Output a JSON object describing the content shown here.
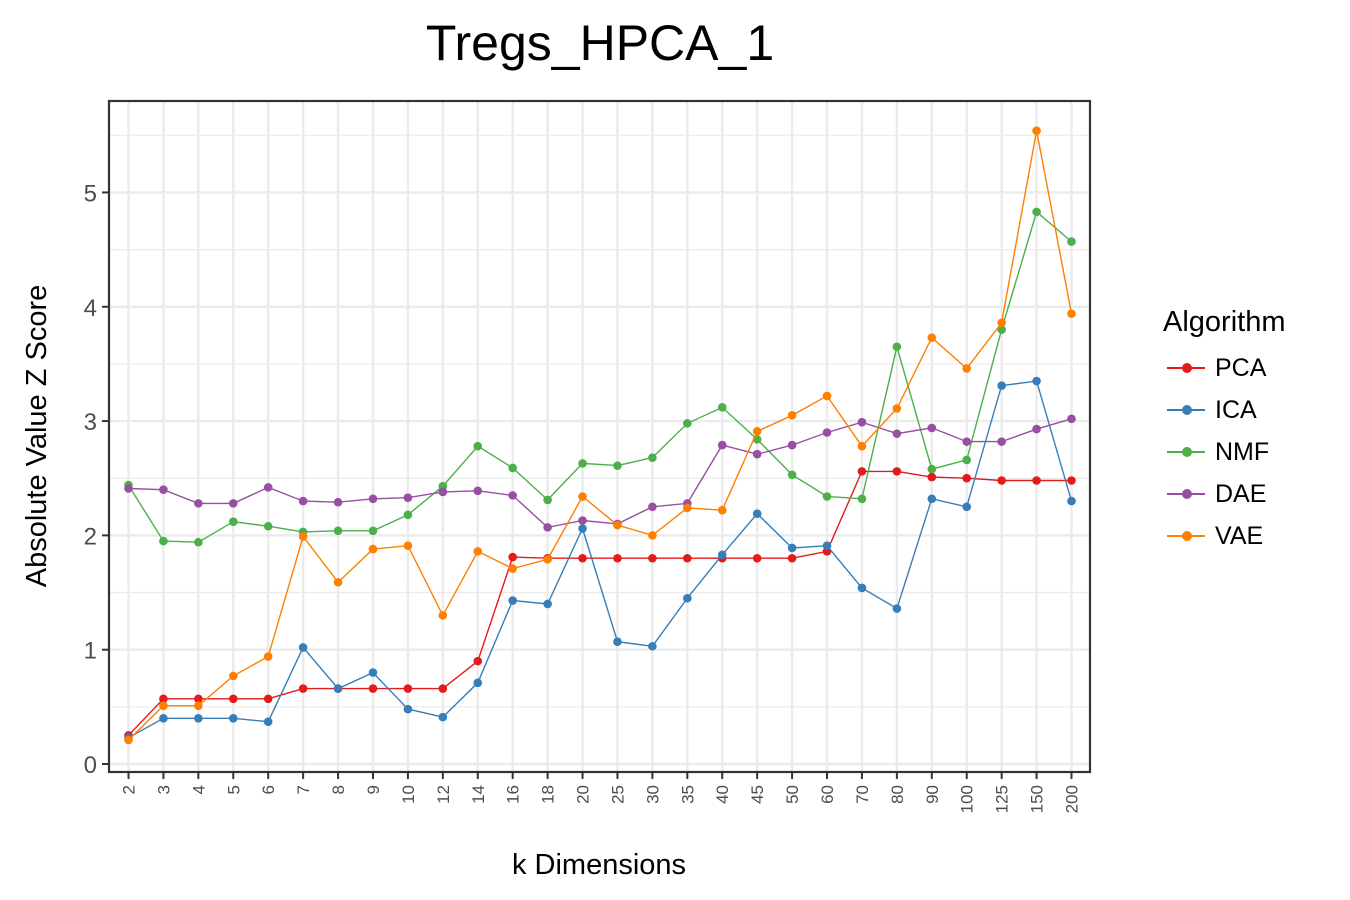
{
  "title": "Tregs_HPCA_1",
  "legend_title": "Algorithm",
  "chart_data": {
    "type": "line",
    "title": "Tregs_HPCA_1",
    "xlabel": "k Dimensions",
    "ylabel": "Absolute Value Z Score",
    "categories": [
      "2",
      "3",
      "4",
      "5",
      "6",
      "7",
      "8",
      "9",
      "10",
      "12",
      "14",
      "16",
      "18",
      "20",
      "25",
      "30",
      "35",
      "40",
      "45",
      "50",
      "60",
      "70",
      "80",
      "90",
      "100",
      "125",
      "150",
      "200"
    ],
    "ylim": [
      -0.07,
      5.8
    ],
    "yticks": [
      0,
      1,
      2,
      3,
      4,
      5
    ],
    "grid": true,
    "legend_position": "right",
    "series": [
      {
        "name": "PCA",
        "color": "#E41A1C",
        "values": [
          0.25,
          0.57,
          0.57,
          0.57,
          0.57,
          0.66,
          0.66,
          0.66,
          0.66,
          0.66,
          0.9,
          1.81,
          1.8,
          1.8,
          1.8,
          1.8,
          1.8,
          1.8,
          1.8,
          1.8,
          1.86,
          2.56,
          2.56,
          2.51,
          2.5,
          2.48,
          2.48,
          2.48
        ]
      },
      {
        "name": "ICA",
        "color": "#377EB8",
        "values": [
          0.23,
          0.4,
          0.4,
          0.4,
          0.37,
          1.02,
          0.66,
          0.8,
          0.48,
          0.41,
          0.71,
          1.43,
          1.4,
          2.06,
          1.07,
          1.03,
          1.45,
          1.83,
          2.19,
          1.89,
          1.91,
          1.54,
          1.36,
          2.32,
          2.25,
          3.31,
          3.35,
          2.3
        ]
      },
      {
        "name": "NMF",
        "color": "#4DAF4A",
        "values": [
          2.44,
          1.95,
          1.94,
          2.12,
          2.08,
          2.03,
          2.04,
          2.04,
          2.18,
          2.43,
          2.78,
          2.59,
          2.31,
          2.63,
          2.61,
          2.68,
          2.98,
          3.12,
          2.84,
          2.53,
          2.34,
          2.32,
          3.65,
          2.58,
          2.66,
          3.8,
          4.83,
          4.57
        ]
      },
      {
        "name": "DAE",
        "color": "#984EA3",
        "values": [
          2.41,
          2.4,
          2.28,
          2.28,
          2.42,
          2.3,
          2.29,
          2.32,
          2.33,
          2.38,
          2.39,
          2.35,
          2.07,
          2.13,
          2.1,
          2.25,
          2.28,
          2.79,
          2.71,
          2.79,
          2.9,
          2.99,
          2.89,
          2.94,
          2.82,
          2.82,
          2.93,
          3.02
        ]
      },
      {
        "name": "VAE",
        "color": "#FF7F00",
        "values": [
          0.21,
          0.51,
          0.51,
          0.77,
          0.94,
          1.99,
          1.59,
          1.88,
          1.91,
          1.3,
          1.86,
          1.71,
          1.79,
          2.34,
          2.09,
          2.0,
          2.24,
          2.22,
          2.91,
          3.05,
          3.22,
          2.78,
          3.11,
          3.73,
          3.46,
          3.86,
          5.54,
          3.94
        ]
      }
    ]
  }
}
